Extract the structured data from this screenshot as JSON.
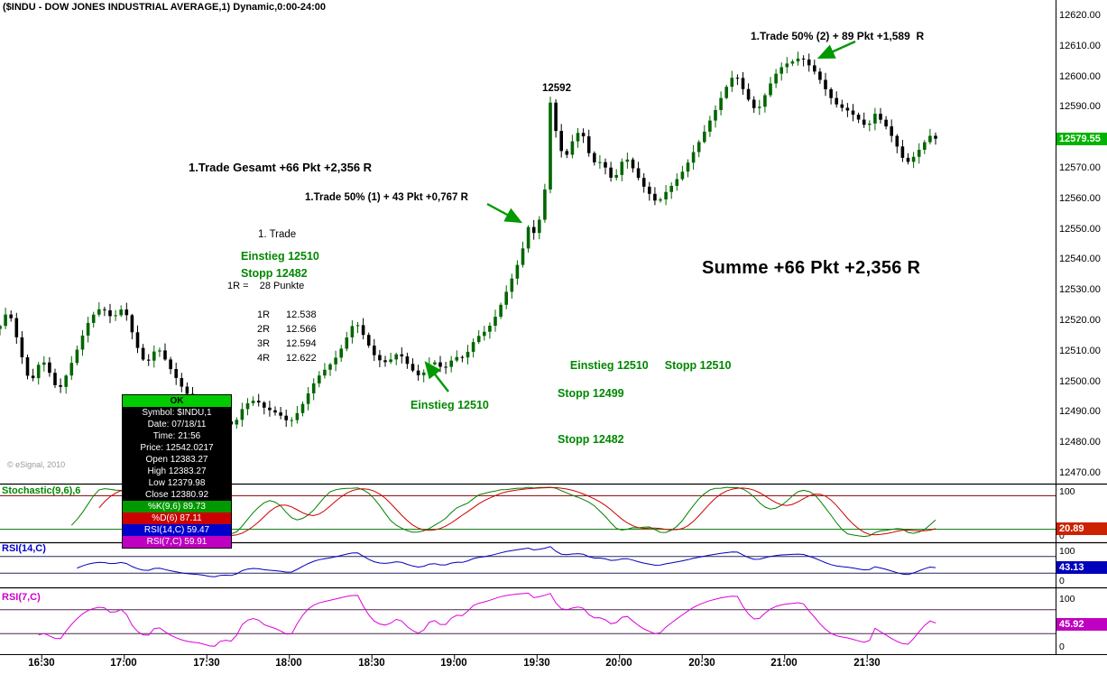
{
  "window_title": "($INDU - DOW JONES INDUSTRIAL AVERAGE,1) Dynamic,0:00-24:00",
  "watermark": "© eSignal, 2010",
  "price_axis": {
    "labels": [
      "12620.00",
      "12610.00",
      "12600.00",
      "12590.00",
      "12580.00",
      "12570.00",
      "12560.00",
      "12550.00",
      "12540.00",
      "12530.00",
      "12520.00",
      "12510.00",
      "12500.00",
      "12490.00",
      "12480.00",
      "12470.00"
    ],
    "badge": {
      "text": "12579.55",
      "value": 12579.55,
      "bg": "#00b400"
    }
  },
  "time_axis": {
    "labels": [
      "16:30",
      "17:00",
      "17:30",
      "18:00",
      "18:30",
      "19:00",
      "19:30",
      "20:00",
      "20:30",
      "21:00",
      "21:30"
    ]
  },
  "annotations": {
    "trade2": "1.Trade 50% (2) + 89 Pkt +1,589  R",
    "spike_label": "12592",
    "gesamt": "1.Trade Gesamt +66 Pkt +2,356 R",
    "trade1": "1.Trade 50% (1) + 43 Pkt +0,767 R",
    "trade_header": "1. Trade",
    "einstieg1": "Einstieg 12510",
    "stopp1": "Stopp 12482",
    "r_def": "1R =    28 Punkte",
    "r_table": [
      {
        "r": "1R",
        "v": "12.538"
      },
      {
        "r": "2R",
        "v": "12.566"
      },
      {
        "r": "3R",
        "v": "12.594"
      },
      {
        "r": "4R",
        "v": "12.622"
      }
    ],
    "einstieg2": "Einstieg 12510",
    "summe": "Summe +66 Pkt +2,356 R",
    "einstieg3": "Einstieg 12510",
    "stopp2": "Stopp 12510",
    "stopp3": "Stopp 12499",
    "stopp4": "Stopp 12482"
  },
  "tooltip": {
    "header": "OK",
    "rows": [
      "Symbol: $INDU,1",
      "Date: 07/18/11",
      "Time: 21:56",
      "Price: 12542.0217",
      "Open 12383.27",
      "High 12383.27",
      "Low 12379.98",
      "Close 12380.92"
    ],
    "colored_rows": [
      {
        "text": "%K(9,6) 89.73",
        "bg": "#009900"
      },
      {
        "text": "%D(6) 87.11",
        "bg": "#cc0000"
      },
      {
        "text": "RSI(14,C) 59.47",
        "bg": "#0000cc"
      },
      {
        "text": "RSI(7,C) 59.91",
        "bg": "#c000c0"
      }
    ]
  },
  "panels": [
    {
      "label": "Stochastic(9,6),6",
      "label_color": "#008800",
      "scale_top": "100",
      "scale_bottom": "0",
      "badge": {
        "text": "20.89",
        "value": 20.89,
        "bg": "#cc2200"
      },
      "ref_lines": [
        {
          "value": 80,
          "color": "#880000"
        },
        {
          "value": 20,
          "color": "#007700"
        }
      ]
    },
    {
      "label": "RSI(14,C)",
      "label_color": "#0000cc",
      "scale_top": "100",
      "scale_bottom": "0",
      "badge": {
        "text": "43.13",
        "value": 43.13,
        "bg": "#0000bb"
      },
      "ref_lines": [
        {
          "value": 70,
          "color": "#28285a"
        },
        {
          "value": 30,
          "color": "#28285a"
        }
      ]
    },
    {
      "label": "RSI(7,C)",
      "label_color": "#cc00cc",
      "scale_top": "100",
      "scale_bottom": "0",
      "badge": {
        "text": "45.92",
        "value": 45.92,
        "bg": "#c000c0"
      },
      "ref_lines": [
        {
          "value": 70,
          "color": "#4a2a4a"
        },
        {
          "value": 30,
          "color": "#4a2a4a"
        }
      ]
    }
  ],
  "chart_data": {
    "type": "candlestick",
    "symbol": "$INDU",
    "title": "DOW JONES INDUSTRIAL AVERAGE, 1-minute, Dynamic 0:00-24:00",
    "y_axis": {
      "min": 12470,
      "max": 12620,
      "tick_step": 10
    },
    "x_ticks": [
      "16:30",
      "17:00",
      "17:30",
      "18:00",
      "18:30",
      "19:00",
      "19:30",
      "20:00",
      "20:30",
      "21:00",
      "21:30"
    ],
    "last_price": 12579.55,
    "session_high": 12610,
    "session_low": 12481,
    "spike_high": 12592,
    "price_path": [
      [
        "16:15",
        12517
      ],
      [
        "16:18",
        12521
      ],
      [
        "16:22",
        12510
      ],
      [
        "16:26",
        12500
      ],
      [
        "16:30",
        12508
      ],
      [
        "16:33",
        12503
      ],
      [
        "16:36",
        12498
      ],
      [
        "16:40",
        12506
      ],
      [
        "16:44",
        12512
      ],
      [
        "16:48",
        12519
      ],
      [
        "16:52",
        12524
      ],
      [
        "16:56",
        12520
      ],
      [
        "17:00",
        12523
      ],
      [
        "17:04",
        12514
      ],
      [
        "17:08",
        12508
      ],
      [
        "17:12",
        12512
      ],
      [
        "17:16",
        12505
      ],
      [
        "17:20",
        12500
      ],
      [
        "17:24",
        12494
      ],
      [
        "17:28",
        12490
      ],
      [
        "17:32",
        12484
      ],
      [
        "17:36",
        12489
      ],
      [
        "17:40",
        12486
      ],
      [
        "17:44",
        12493
      ],
      [
        "17:48",
        12496
      ],
      [
        "17:52",
        12491
      ],
      [
        "17:56",
        12487
      ],
      [
        "18:00",
        12485
      ],
      [
        "18:04",
        12491
      ],
      [
        "18:08",
        12497
      ],
      [
        "18:12",
        12503
      ],
      [
        "18:16",
        12509
      ],
      [
        "18:20",
        12514
      ],
      [
        "18:24",
        12519
      ],
      [
        "18:28",
        12513
      ],
      [
        "18:32",
        12507
      ],
      [
        "18:36",
        12504
      ],
      [
        "18:40",
        12508
      ],
      [
        "18:44",
        12506
      ],
      [
        "18:48",
        12503
      ],
      [
        "18:52",
        12507
      ],
      [
        "18:56",
        12505
      ],
      [
        "19:00",
        12509
      ],
      [
        "19:04",
        12506
      ],
      [
        "19:08",
        12512
      ],
      [
        "19:12",
        12517
      ],
      [
        "19:16",
        12523
      ],
      [
        "19:20",
        12531
      ],
      [
        "19:24",
        12542
      ],
      [
        "19:27",
        12553
      ],
      [
        "19:30",
        12549
      ],
      [
        "19:33",
        12562
      ],
      [
        "19:35",
        12590
      ],
      [
        "19:37",
        12581
      ],
      [
        "19:40",
        12572
      ],
      [
        "19:43",
        12578
      ],
      [
        "19:46",
        12581
      ],
      [
        "19:50",
        12571
      ],
      [
        "19:54",
        12574
      ],
      [
        "19:58",
        12567
      ],
      [
        "20:02",
        12574
      ],
      [
        "20:06",
        12569
      ],
      [
        "20:10",
        12563
      ],
      [
        "20:14",
        12556
      ],
      [
        "20:18",
        12561
      ],
      [
        "20:22",
        12568
      ],
      [
        "20:26",
        12574
      ],
      [
        "20:30",
        12580
      ],
      [
        "20:34",
        12589
      ],
      [
        "20:38",
        12597
      ],
      [
        "20:42",
        12600
      ],
      [
        "20:46",
        12592
      ],
      [
        "20:50",
        12588
      ],
      [
        "20:54",
        12595
      ],
      [
        "20:58",
        12601
      ],
      [
        "21:02",
        12606
      ],
      [
        "21:06",
        12609
      ],
      [
        "21:10",
        12603
      ],
      [
        "21:14",
        12597
      ],
      [
        "21:18",
        12592
      ],
      [
        "21:22",
        12588
      ],
      [
        "21:26",
        12584
      ],
      [
        "21:30",
        12583
      ],
      [
        "21:33",
        12589
      ],
      [
        "21:36",
        12586
      ],
      [
        "21:40",
        12579
      ],
      [
        "21:44",
        12573
      ],
      [
        "21:48",
        12576
      ],
      [
        "21:55",
        12579.55
      ]
    ],
    "indicators": [
      {
        "name": "Stochastic(9,6),6",
        "type": "stochastic",
        "k_period": 9,
        "smoothing": 6,
        "range": [
          0,
          100
        ],
        "overbought": 80,
        "oversold": 20,
        "lines": [
          {
            "name": "%K",
            "color": "#008000",
            "last": 89.73
          },
          {
            "name": "%D",
            "color": "#cc0000",
            "last": 87.11
          }
        ]
      },
      {
        "name": "RSI(14,C)",
        "type": "rsi",
        "period": 14,
        "color": "#0000bb",
        "last": 59.47,
        "range": [
          0,
          100
        ]
      },
      {
        "name": "RSI(7,C)",
        "type": "rsi",
        "period": 7,
        "color": "#dd00dd",
        "last": 59.91,
        "range": [
          0,
          100
        ]
      }
    ],
    "trades": {
      "einstieg": 12510,
      "stopp_initial": 12482,
      "r_points": 28,
      "targets": {
        "1R": 12538,
        "2R": 12566,
        "3R": 12594,
        "4R": 12622
      },
      "result_total": "+66 Pkt +2,356 R"
    }
  }
}
